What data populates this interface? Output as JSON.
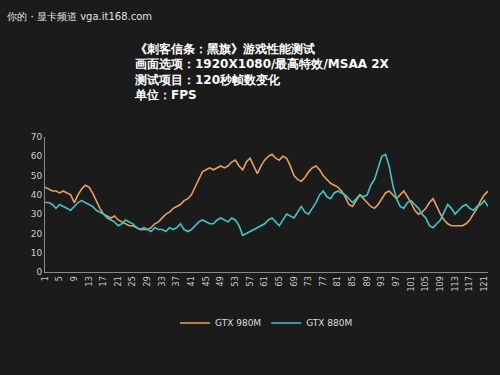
{
  "chart_data": {
    "type": "line",
    "title": [
      "《刺客信条：黑旗》游戏性能测试",
      "画面选项：1920X1080/最高特效/MSAA 2X",
      "测试项目：120秒帧数变化",
      "单位：FPS"
    ],
    "annotations": [
      "你的・显卡频道 vga.it168.com"
    ],
    "x": [
      1,
      2,
      3,
      4,
      5,
      6,
      7,
      8,
      9,
      10,
      11,
      12,
      13,
      14,
      15,
      16,
      17,
      18,
      19,
      20,
      21,
      22,
      23,
      24,
      25,
      26,
      27,
      28,
      29,
      30,
      31,
      32,
      33,
      34,
      35,
      36,
      37,
      38,
      39,
      40,
      41,
      42,
      43,
      44,
      45,
      46,
      47,
      48,
      49,
      50,
      51,
      52,
      53,
      54,
      55,
      56,
      57,
      58,
      59,
      60,
      61,
      62,
      63,
      64,
      65,
      66,
      67,
      68,
      69,
      70,
      71,
      72,
      73,
      74,
      75,
      76,
      77,
      78,
      79,
      80,
      81,
      82,
      83,
      84,
      85,
      86,
      87,
      88,
      89,
      90,
      91,
      92,
      93,
      94,
      95,
      96,
      97,
      98,
      99,
      100,
      101,
      102,
      103,
      104,
      105,
      106,
      107,
      108,
      109,
      110,
      111,
      112,
      113,
      114,
      115,
      116,
      117,
      118,
      119,
      120,
      121,
      122
    ],
    "series": [
      {
        "name": "GTX 980M",
        "color": "#e8a05a",
        "values": [
          44,
          43,
          42,
          42,
          41,
          42,
          41,
          40,
          36,
          40,
          43,
          45,
          44,
          41,
          37,
          33,
          30,
          29,
          28,
          29,
          27,
          26,
          25,
          24,
          24,
          23,
          22,
          22,
          22,
          23,
          25,
          26,
          28,
          30,
          31,
          33,
          34,
          35,
          37,
          38,
          40,
          44,
          48,
          52,
          53,
          54,
          53,
          54,
          55,
          54,
          55,
          57,
          58,
          55,
          53,
          57,
          59,
          55,
          51,
          55,
          58,
          60,
          61,
          59,
          58,
          60,
          59,
          55,
          50,
          48,
          47,
          49,
          52,
          54,
          55,
          53,
          50,
          48,
          46,
          45,
          44,
          42,
          39,
          35,
          34,
          37,
          40,
          38,
          36,
          34,
          33,
          35,
          38,
          41,
          42,
          40,
          38,
          40,
          42,
          39,
          36,
          32,
          30,
          31,
          33,
          36,
          38,
          34,
          30,
          27,
          25,
          24,
          24,
          24,
          24,
          25,
          27,
          30,
          33,
          37,
          40,
          42
        ]
      },
      {
        "name": "GTX 880M",
        "color": "#3fc5c5",
        "values": [
          36,
          36,
          35,
          33,
          35,
          34,
          33,
          32,
          34,
          36,
          37,
          36,
          35,
          34,
          32,
          31,
          30,
          28,
          27,
          26,
          24,
          25,
          27,
          26,
          25,
          23,
          22,
          23,
          22,
          21,
          23,
          22,
          22,
          21,
          23,
          22,
          23,
          25,
          22,
          21,
          22,
          24,
          26,
          27,
          26,
          25,
          25,
          27,
          28,
          27,
          26,
          28,
          27,
          24,
          19,
          20,
          21,
          22,
          23,
          24,
          25,
          27,
          28,
          26,
          24,
          27,
          30,
          29,
          28,
          31,
          34,
          31,
          30,
          33,
          36,
          40,
          42,
          39,
          38,
          41,
          42,
          41,
          40,
          38,
          36,
          38,
          40,
          39,
          40,
          45,
          48,
          54,
          60,
          61,
          55,
          45,
          38,
          34,
          33,
          36,
          37,
          35,
          33,
          30,
          28,
          24,
          23,
          25,
          27,
          31,
          35,
          33,
          30,
          32,
          34,
          35,
          33,
          32,
          34,
          35,
          37,
          34
        ]
      }
    ],
    "xlim": [
      1,
      122
    ],
    "xticks": [
      1,
      5,
      9,
      13,
      17,
      21,
      25,
      29,
      33,
      37,
      41,
      45,
      49,
      53,
      57,
      61,
      65,
      69,
      73,
      77,
      81,
      85,
      89,
      93,
      97,
      101,
      105,
      109,
      113,
      117,
      121
    ],
    "ylim": [
      0,
      70
    ],
    "yticks": [
      0,
      10,
      20,
      30,
      40,
      50,
      60,
      70
    ],
    "grid": false,
    "legend": "bottom"
  }
}
